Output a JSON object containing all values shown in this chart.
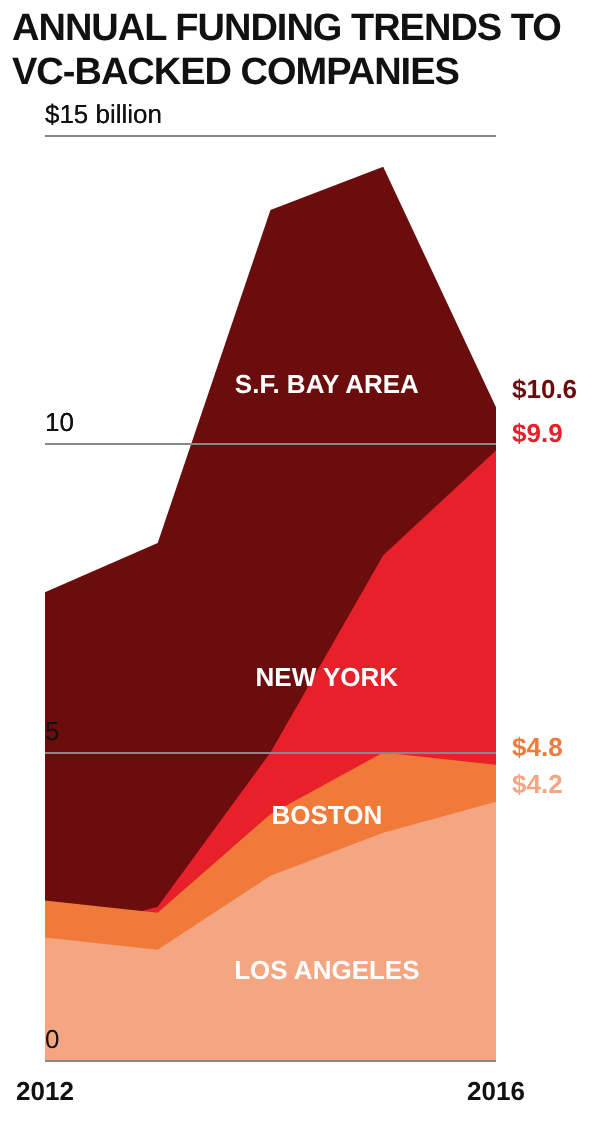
{
  "chart_data": {
    "type": "area",
    "title": "ANNUAL FUNDING TRENDS TO VC-BACKED COMPANIES",
    "categories": [
      "2012",
      null,
      null,
      null,
      "2016"
    ],
    "series": [
      {
        "name": "S.F. BAY AREA",
        "color": "#6b0d0d",
        "values": [
          7.6,
          8.4,
          13.8,
          14.5,
          10.6
        ],
        "value_labels": [
          null,
          null,
          null,
          null,
          "$10.6"
        ]
      },
      {
        "name": "NEW YORK",
        "color": "#e8202a",
        "values": [
          2.0,
          2.5,
          5.0,
          8.2,
          9.9
        ],
        "value_labels": [
          null,
          null,
          null,
          null,
          "$9.9"
        ]
      },
      {
        "name": "BOSTON",
        "color": "#f07a3a",
        "values": [
          2.6,
          2.4,
          4.0,
          5.0,
          4.8
        ],
        "value_labels": [
          null,
          null,
          null,
          null,
          "$4.8"
        ]
      },
      {
        "name": "LOS ANGELES",
        "color": "#f4a582",
        "values": [
          2.0,
          1.8,
          3.0,
          3.7,
          4.2
        ],
        "value_labels": [
          null,
          null,
          null,
          null,
          "$4.2"
        ]
      }
    ],
    "ylim": [
      0,
      15
    ],
    "yticks": [
      0,
      5,
      10,
      {
        "value": 15,
        "label": "$15 billion"
      }
    ],
    "grid": "y"
  }
}
